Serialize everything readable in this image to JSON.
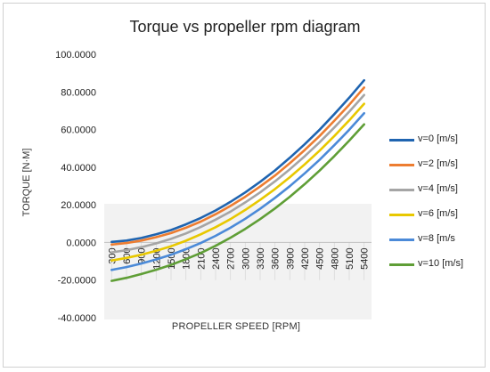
{
  "chart_data": {
    "type": "line",
    "title": "Torque vs propeller rpm diagram",
    "xlabel": "PROPELLER SPEED [RPM]",
    "ylabel": "TORQUE [N·M]",
    "ylim": [
      -40,
      100
    ],
    "y_ticks": [
      "100.0000",
      "80.0000",
      "60.0000",
      "40.0000",
      "20.0000",
      "0.0000",
      "-20.0000",
      "-40.0000"
    ],
    "y_tick_values": [
      100,
      80,
      60,
      40,
      20,
      0,
      -20,
      -40
    ],
    "categories": [
      "300",
      "600",
      "900",
      "1200",
      "1500",
      "1800",
      "2100",
      "2400",
      "2700",
      "3000",
      "3300",
      "3600",
      "3900",
      "4200",
      "4500",
      "4800",
      "5100",
      "5400"
    ],
    "grid": true,
    "legend_position": "right",
    "series": [
      {
        "name": "v=0 [m/s]",
        "color": "#1f64b0",
        "values": [
          0.3,
          1.0,
          2.4,
          4.3,
          6.6,
          9.6,
          13.0,
          17.0,
          21.6,
          26.6,
          32.2,
          38.3,
          45.0,
          52.2,
          59.9,
          68.2,
          76.9,
          86.2
        ]
      },
      {
        "name": "v=2 [m/s]",
        "color": "#ed7d31",
        "values": [
          -1.1,
          -0.3,
          1.0,
          2.8,
          5.0,
          7.8,
          11.1,
          15.0,
          19.4,
          24.3,
          29.7,
          35.6,
          42.1,
          49.1,
          56.6,
          64.7,
          73.2,
          82.3
        ]
      },
      {
        "name": "v=4 [m/s]",
        "color": "#a5a5a5",
        "values": [
          -5.3,
          -4.1,
          -2.5,
          -0.5,
          1.9,
          4.8,
          8.2,
          12.1,
          16.4,
          21.3,
          26.6,
          32.5,
          38.9,
          45.8,
          53.2,
          61.1,
          69.5,
          78.4
        ]
      },
      {
        "name": "v=6 [m/s]",
        "color": "#e8c800",
        "values": [
          -9.6,
          -8.2,
          -6.5,
          -4.4,
          -2.0,
          0.9,
          4.3,
          8.1,
          12.4,
          17.3,
          22.6,
          28.4,
          34.7,
          41.5,
          48.8,
          56.6,
          64.9,
          73.7
        ]
      },
      {
        "name": "v=8 [m/s",
        "color": "#4b8ad8",
        "values": [
          -14.6,
          -13.1,
          -11.2,
          -9.0,
          -6.5,
          -3.6,
          -0.3,
          3.5,
          7.8,
          12.6,
          17.9,
          23.7,
          29.9,
          36.7,
          43.9,
          51.7,
          59.9,
          68.7
        ]
      },
      {
        "name": "v=10 [m/s]",
        "color": "#5f9e36",
        "values": [
          -20.4,
          -18.8,
          -16.8,
          -14.5,
          -11.9,
          -8.9,
          -5.6,
          -1.8,
          2.5,
          7.2,
          12.4,
          18.1,
          24.3,
          31.0,
          38.2,
          45.9,
          54.1,
          62.8
        ]
      }
    ]
  }
}
